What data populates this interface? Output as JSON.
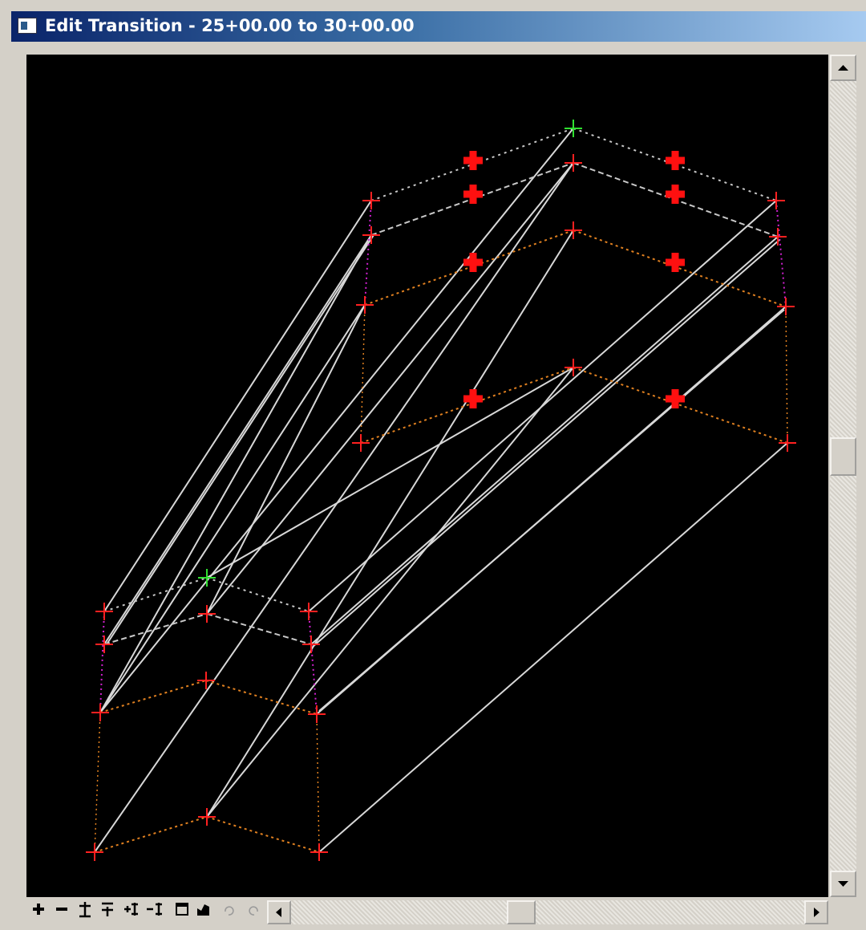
{
  "window": {
    "title": "Edit Transition - 25+00.00 to 30+00.00"
  }
}
